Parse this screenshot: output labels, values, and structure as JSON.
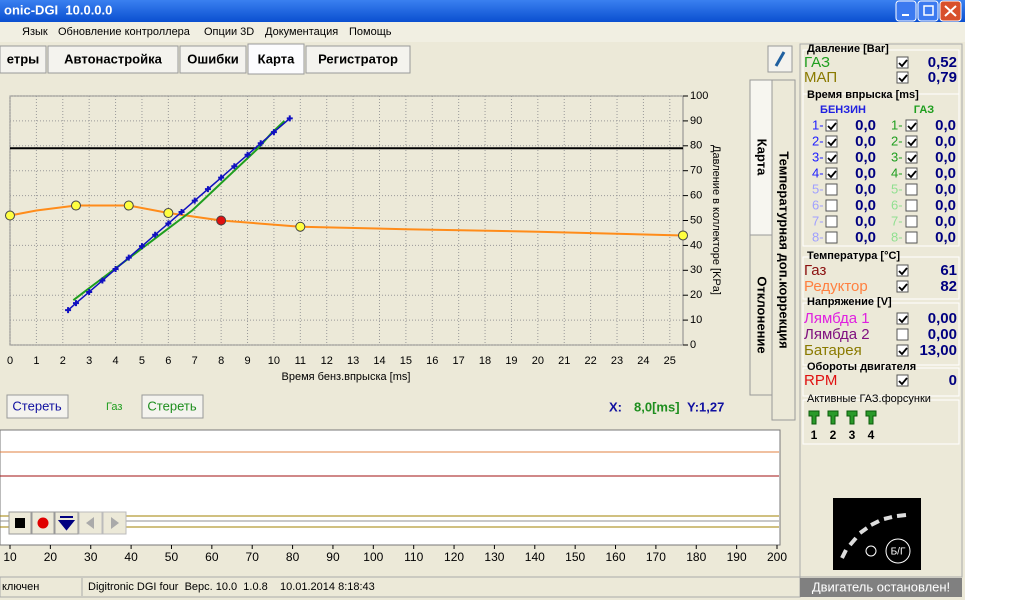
{
  "window": {
    "title": "onic-DGI  10.0.0.0"
  },
  "menu": [
    "Язык",
    "Обновление контроллера",
    "Опции 3D",
    "Документация",
    "Помощь"
  ],
  "tabs": [
    "етры",
    "Автонастройка",
    "Ошибки",
    "Карта",
    "Регистратор"
  ],
  "side_tabs": [
    "Карта",
    "Температурная доп.коррекция",
    "Отклонение"
  ],
  "map_chart": {
    "type": "line",
    "x_label": "Время бенз.впрыска [ms]",
    "y2_label": "Давление в коллекторе [KPa]",
    "xlim": [
      0,
      25.5
    ],
    "xticks": [
      0,
      1,
      2,
      3,
      4,
      5,
      6,
      7,
      8,
      9,
      10,
      11,
      12,
      13,
      14,
      15,
      16,
      17,
      18,
      19,
      20,
      21,
      22,
      23,
      24,
      25
    ],
    "y2lim": [
      0,
      100
    ],
    "y2ticks": [
      0,
      10,
      20,
      30,
      40,
      50,
      60,
      70,
      80,
      90,
      100
    ],
    "grid": true,
    "series": [
      {
        "color": "#000000",
        "style": "line",
        "axis": "y2",
        "x": [
          0,
          25.5
        ],
        "values": [
          79,
          79
        ]
      },
      {
        "color": "#ff8c1a",
        "style": "line",
        "axis": "y2",
        "x": [
          0,
          1,
          2.5,
          4.5,
          6,
          8,
          11,
          15,
          20,
          25.5
        ],
        "values": [
          52,
          54,
          56,
          56,
          53,
          50,
          47.5,
          46.5,
          45.5,
          44
        ]
      },
      {
        "color": "#1e9e1e",
        "style": "line",
        "axis": "y2",
        "x": [
          2.4,
          2.9,
          3.4,
          3.9,
          4.4,
          4.9,
          5.4,
          5.9,
          6.4,
          6.9,
          7.4,
          7.9,
          8.4,
          8.9,
          9.4,
          9.9,
          10.4
        ],
        "values": [
          18,
          22,
          26,
          30,
          34,
          38,
          42,
          46,
          50,
          54,
          59,
          64,
          69,
          74,
          79,
          85,
          90
        ]
      },
      {
        "color": "#1010c0",
        "style": "line-cross",
        "axis": "y2",
        "x": [
          2.2,
          2.5,
          3,
          3.5,
          4,
          4.5,
          5,
          5.5,
          6,
          6.5,
          7,
          7.5,
          8,
          8.5,
          9,
          9.5,
          10,
          10.6
        ],
        "values": [
          14,
          16.8,
          21.3,
          25.9,
          30.5,
          35.1,
          39.7,
          44.3,
          48.8,
          53.4,
          58,
          62.6,
          67.2,
          71.8,
          76.4,
          81,
          85.5,
          91
        ]
      },
      {
        "color": "#ffff40",
        "style": "points",
        "axis": "y2",
        "x": [
          0,
          2.5,
          4.5,
          6,
          11,
          25.5
        ],
        "values": [
          52,
          56,
          56,
          53,
          47.5,
          44
        ]
      },
      {
        "color": "#e01010",
        "style": "points",
        "axis": "y2",
        "x": [
          8
        ],
        "values": [
          50
        ]
      }
    ]
  },
  "map_controls": {
    "clear_petrol": "Стереть",
    "gas_label": "Газ",
    "clear_gas": "Стереть",
    "x_label": "X:",
    "x_value": "8,0[ms]",
    "y_value": "Y:1,27"
  },
  "recorder_chart": {
    "xlim": [
      10,
      200
    ],
    "xticks": [
      10,
      20,
      30,
      40,
      50,
      60,
      70,
      80,
      90,
      100,
      110,
      120,
      130,
      140,
      150,
      160,
      170,
      180,
      190,
      200
    ]
  },
  "status": [
    "ключен",
    "Digitronic DGI four  Верс. 10.0  1.0.8    10.01.2014 8:18:43"
  ],
  "panel": {
    "pressure": {
      "title": "Давление [Bar]",
      "rows": [
        {
          "label": "ГАЗ",
          "value": "0,52",
          "checked": true
        },
        {
          "label": "МАП",
          "value": "0,79",
          "checked": true
        }
      ]
    },
    "injection": {
      "title": "Время впрыска [ms]",
      "petrol": "БЕНЗИН",
      "gas": "ГАЗ",
      "rows": [
        {
          "petrol_label": "1-",
          "petrol_checked": true,
          "petrol_value": "0,0",
          "gas_label": "1-",
          "gas_checked": true,
          "gas_value": "0,0"
        },
        {
          "petrol_label": "2-",
          "petrol_checked": true,
          "petrol_value": "0,0",
          "gas_label": "2-",
          "gas_checked": true,
          "gas_value": "0,0"
        },
        {
          "petrol_label": "3-",
          "petrol_checked": true,
          "petrol_value": "0,0",
          "gas_label": "3-",
          "gas_checked": true,
          "gas_value": "0,0"
        },
        {
          "petrol_label": "4-",
          "petrol_checked": true,
          "petrol_value": "0,0",
          "gas_label": "4-",
          "gas_checked": true,
          "gas_value": "0,0"
        },
        {
          "petrol_label": "5-",
          "petrol_checked": false,
          "petrol_value": "0,0",
          "gas_label": "5-",
          "gas_checked": false,
          "gas_value": "0,0"
        },
        {
          "petrol_label": "6-",
          "petrol_checked": false,
          "petrol_value": "0,0",
          "gas_label": "6-",
          "gas_checked": false,
          "gas_value": "0,0"
        },
        {
          "petrol_label": "7-",
          "petrol_checked": false,
          "petrol_value": "0,0",
          "gas_label": "7-",
          "gas_checked": false,
          "gas_value": "0,0"
        },
        {
          "petrol_label": "8-",
          "petrol_checked": false,
          "petrol_value": "0,0",
          "gas_label": "8-",
          "gas_checked": false,
          "gas_value": "0,0"
        }
      ]
    },
    "temperature": {
      "title": "Температура [°C]",
      "rows": [
        {
          "label": "Газ",
          "value": 61,
          "checked": true
        },
        {
          "label": "Редуктор",
          "value": 82,
          "checked": true
        }
      ]
    },
    "voltage": {
      "title": "Напряжение [V]",
      "rows": [
        {
          "label": "Лямбда 1",
          "value": "0,00",
          "checked": true
        },
        {
          "label": "Лямбда 2",
          "value": "0,00",
          "checked": false
        },
        {
          "label": "Батарея",
          "value": "13,00",
          "checked": true
        }
      ]
    },
    "rpm": {
      "title": "Обороты двигателя",
      "rows": [
        {
          "label": "RPM",
          "value": 0,
          "checked": true
        }
      ]
    },
    "injectors": {
      "title": "Активные ГАЗ.форсунки",
      "items": [
        1,
        2,
        3,
        4
      ]
    },
    "indicator": "Б/Г",
    "engine_status": "Двигатель остановлен!"
  }
}
